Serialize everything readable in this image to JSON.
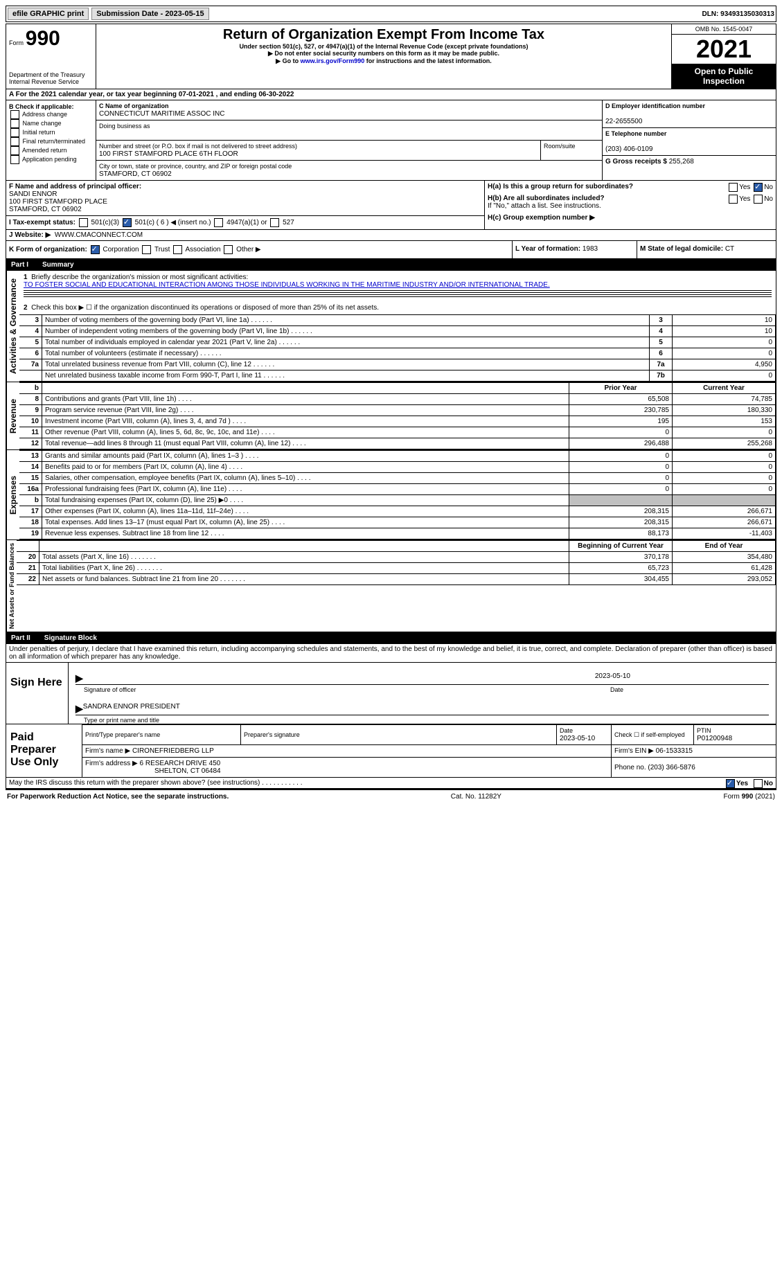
{
  "topbar": {
    "efile_label": "efile GRAPHIC print",
    "submission_label": "Submission Date - 2023-05-15",
    "dln_label": "DLN: 93493135030313"
  },
  "header": {
    "form_word": "Form",
    "form_num": "990",
    "dept": "Department of the Treasury",
    "irs": "Internal Revenue Service",
    "title": "Return of Organization Exempt From Income Tax",
    "sub1": "Under section 501(c), 527, or 4947(a)(1) of the Internal Revenue Code (except private foundations)",
    "sub2": "▶ Do not enter social security numbers on this form as it may be made public.",
    "sub3_pre": "▶ Go to ",
    "sub3_link": "www.irs.gov/Form990",
    "sub3_post": " for instructions and the latest information.",
    "omb": "OMB No. 1545-0047",
    "year": "2021",
    "inspection": "Open to Public Inspection"
  },
  "period": {
    "line": "A For the 2021 calendar year, or tax year beginning 07-01-2021   , and ending 06-30-2022"
  },
  "boxB": {
    "label": "B Check if applicable:",
    "opts": [
      "Address change",
      "Name change",
      "Initial return",
      "Final return/terminated",
      "Amended return",
      "Application pending"
    ]
  },
  "boxC": {
    "name_label": "C Name of organization",
    "name": "CONNECTICUT MARITIME ASSOC INC",
    "dba_label": "Doing business as",
    "dba": "",
    "addr_label": "Number and street (or P.O. box if mail is not delivered to street address)",
    "room_label": "Room/suite",
    "addr": "100 FIRST STAMFORD PLACE 6TH FLOOR",
    "city_label": "City or town, state or province, country, and ZIP or foreign postal code",
    "city": "STAMFORD, CT  06902"
  },
  "boxD": {
    "label": "D Employer identification number",
    "val": "22-2655500"
  },
  "boxE": {
    "label": "E Telephone number",
    "val": "(203) 406-0109"
  },
  "boxG": {
    "label": "G Gross receipts $",
    "val": "255,268"
  },
  "boxF": {
    "label": "F Name and address of principal officer:",
    "name": "SANDI ENNOR",
    "addr1": "100 FIRST STAMFORD PLACE",
    "addr2": "STAMFORD, CT  06902"
  },
  "boxH": {
    "a_label": "H(a)  Is this a group return for subordinates?",
    "b_label": "H(b)  Are all subordinates included?",
    "b_note": "If \"No,\" attach a list. See instructions.",
    "c_label": "H(c)  Group exemption number ▶"
  },
  "boxI": {
    "label": "I  Tax-exempt status:",
    "o1": "501(c)(3)",
    "o2": "501(c) ( 6 ) ◀ (insert no.)",
    "o3": "4947(a)(1) or",
    "o4": "527"
  },
  "boxJ": {
    "label": "J  Website: ▶",
    "val": "WWW.CMACONNECT.COM"
  },
  "boxK": {
    "label": "K Form of organization:",
    "o1": "Corporation",
    "o2": "Trust",
    "o3": "Association",
    "o4": "Other ▶"
  },
  "boxL": {
    "label": "L Year of formation:",
    "val": "1983"
  },
  "boxM": {
    "label": "M State of legal domicile:",
    "val": "CT"
  },
  "part1": {
    "title": "Part I",
    "name": "Summary",
    "l1_label": "Briefly describe the organization's mission or most significant activities:",
    "l1_text": "TO FOSTER SOCIAL AND EDUCATIONAL INTERACTION AMONG THOSE INDIVIDUALS WORKING IN THE MARITIME INDUSTRY AND/OR INTERNATIONAL TRADE.",
    "l2": "Check this box ▶ ☐ if the organization discontinued its operations or disposed of more than 25% of its net assets.",
    "rows_gov": [
      {
        "n": "3",
        "d": "Number of voting members of the governing body (Part VI, line 1a)",
        "b": "3",
        "v": "10"
      },
      {
        "n": "4",
        "d": "Number of independent voting members of the governing body (Part VI, line 1b)",
        "b": "4",
        "v": "10"
      },
      {
        "n": "5",
        "d": "Total number of individuals employed in calendar year 2021 (Part V, line 2a)",
        "b": "5",
        "v": "0"
      },
      {
        "n": "6",
        "d": "Total number of volunteers (estimate if necessary)",
        "b": "6",
        "v": "0"
      },
      {
        "n": "7a",
        "d": "Total unrelated business revenue from Part VIII, column (C), line 12",
        "b": "7a",
        "v": "4,950"
      },
      {
        "n": "",
        "d": "Net unrelated business taxable income from Form 990-T, Part I, line 11",
        "b": "7b",
        "v": "0"
      }
    ],
    "col_prior": "Prior Year",
    "col_curr": "Current Year",
    "rows_rev": [
      {
        "n": "8",
        "d": "Contributions and grants (Part VIII, line 1h)",
        "p": "65,508",
        "c": "74,785"
      },
      {
        "n": "9",
        "d": "Program service revenue (Part VIII, line 2g)",
        "p": "230,785",
        "c": "180,330"
      },
      {
        "n": "10",
        "d": "Investment income (Part VIII, column (A), lines 3, 4, and 7d )",
        "p": "195",
        "c": "153"
      },
      {
        "n": "11",
        "d": "Other revenue (Part VIII, column (A), lines 5, 6d, 8c, 9c, 10c, and 11e)",
        "p": "0",
        "c": "0"
      },
      {
        "n": "12",
        "d": "Total revenue—add lines 8 through 11 (must equal Part VIII, column (A), line 12)",
        "p": "296,488",
        "c": "255,268"
      }
    ],
    "rows_exp": [
      {
        "n": "13",
        "d": "Grants and similar amounts paid (Part IX, column (A), lines 1–3 )",
        "p": "0",
        "c": "0"
      },
      {
        "n": "14",
        "d": "Benefits paid to or for members (Part IX, column (A), line 4)",
        "p": "0",
        "c": "0"
      },
      {
        "n": "15",
        "d": "Salaries, other compensation, employee benefits (Part IX, column (A), lines 5–10)",
        "p": "0",
        "c": "0"
      },
      {
        "n": "16a",
        "d": "Professional fundraising fees (Part IX, column (A), line 11e)",
        "p": "0",
        "c": "0"
      },
      {
        "n": "b",
        "d": "Total fundraising expenses (Part IX, column (D), line 25) ▶0",
        "p": "",
        "c": "",
        "grey": true
      },
      {
        "n": "17",
        "d": "Other expenses (Part IX, column (A), lines 11a–11d, 11f–24e)",
        "p": "208,315",
        "c": "266,671"
      },
      {
        "n": "18",
        "d": "Total expenses. Add lines 13–17 (must equal Part IX, column (A), line 25)",
        "p": "208,315",
        "c": "266,671"
      },
      {
        "n": "19",
        "d": "Revenue less expenses. Subtract line 18 from line 12",
        "p": "88,173",
        "c": "-11,403"
      }
    ],
    "col_begin": "Beginning of Current Year",
    "col_end": "End of Year",
    "rows_net": [
      {
        "n": "20",
        "d": "Total assets (Part X, line 16)",
        "p": "370,178",
        "c": "354,480"
      },
      {
        "n": "21",
        "d": "Total liabilities (Part X, line 26)",
        "p": "65,723",
        "c": "61,428"
      },
      {
        "n": "22",
        "d": "Net assets or fund balances. Subtract line 21 from line 20",
        "p": "304,455",
        "c": "293,052"
      }
    ],
    "label_gov": "Activities & Governance",
    "label_rev": "Revenue",
    "label_exp": "Expenses",
    "label_net": "Net Assets or Fund Balances"
  },
  "part2": {
    "title": "Part II",
    "name": "Signature Block",
    "decl": "Under penalties of perjury, I declare that I have examined this return, including accompanying schedules and statements, and to the best of my knowledge and belief, it is true, correct, and complete. Declaration of preparer (other than officer) is based on all information of which preparer has any knowledge.",
    "sign_here": "Sign Here",
    "sig_officer": "Signature of officer",
    "sig_date": "2023-05-10",
    "date_label": "Date",
    "typed_name": "SANDRA ENNOR  PRESIDENT",
    "typed_label": "Type or print name and title",
    "paid": "Paid Preparer Use Only",
    "prep_name_label": "Print/Type preparer's name",
    "prep_sig_label": "Preparer's signature",
    "prep_date_label": "Date",
    "prep_date": "2023-05-10",
    "prep_self": "Check ☐ if self-employed",
    "ptin_label": "PTIN",
    "ptin": "P01200948",
    "firm_name_label": "Firm's name    ▶",
    "firm_name": "CIRONEFRIEDBERG LLP",
    "firm_ein_label": "Firm's EIN ▶",
    "firm_ein": "06-1533315",
    "firm_addr_label": "Firm's address ▶",
    "firm_addr": "6 RESEARCH DRIVE 450",
    "firm_city": "SHELTON, CT  06484",
    "firm_phone_label": "Phone no.",
    "firm_phone": "(203) 366-5876",
    "discuss": "May the IRS discuss this return with the preparer shown above? (see instructions)",
    "yes": "Yes",
    "no": "No"
  },
  "footer": {
    "left": "For Paperwork Reduction Act Notice, see the separate instructions.",
    "mid": "Cat. No. 11282Y",
    "right": "Form 990 (2021)"
  }
}
